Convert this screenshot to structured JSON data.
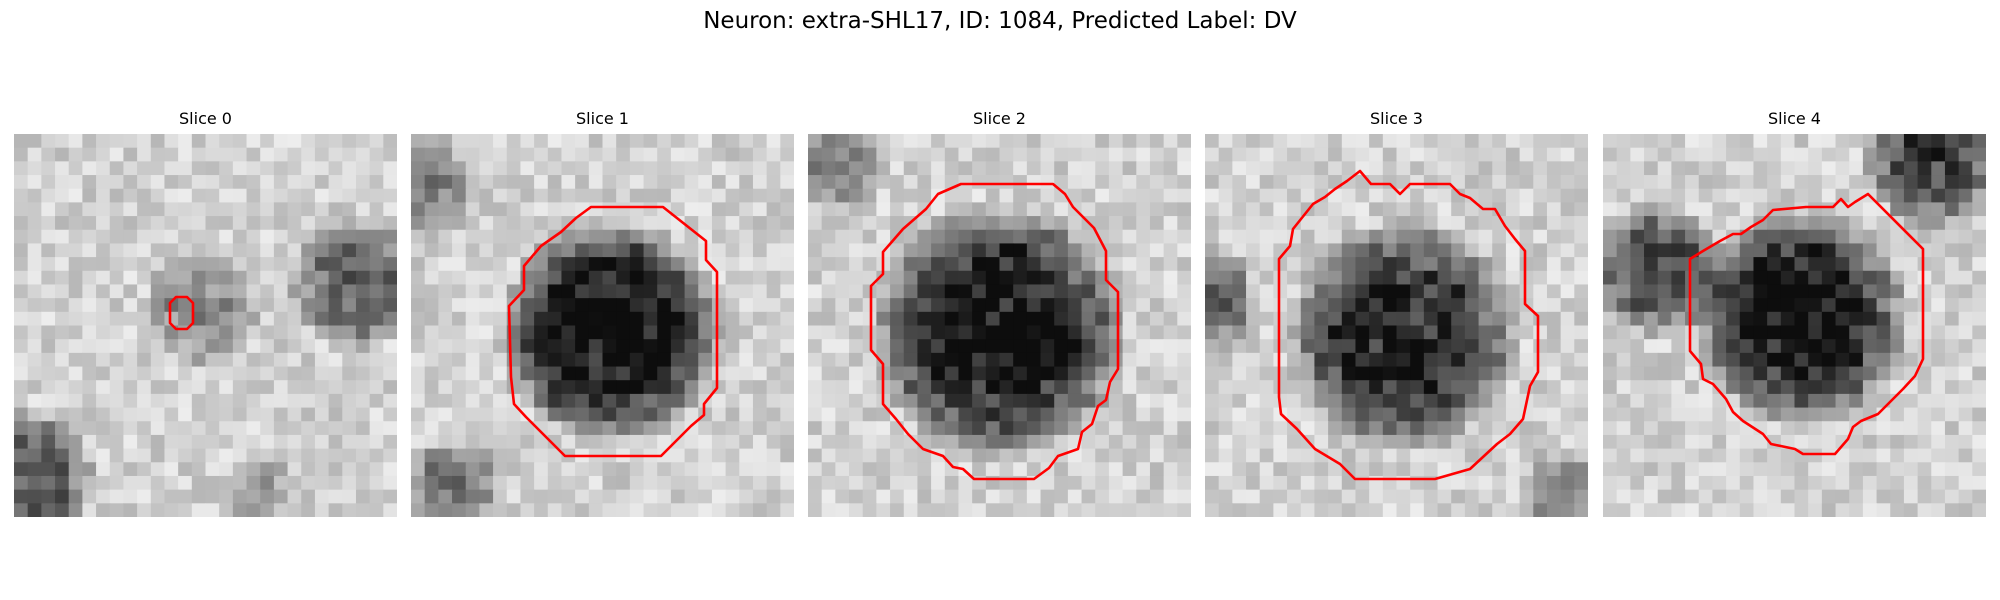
{
  "figure": {
    "title": "Neuron: extra-SHL17, ID: 1084, Predicted Label: DV"
  },
  "colors": {
    "contour": "#ff0000",
    "background": "#ffffff"
  },
  "panels": [
    {
      "title": "Slice 0"
    },
    {
      "title": "Slice 1"
    },
    {
      "title": "Slice 2"
    },
    {
      "title": "Slice 3"
    },
    {
      "title": "Slice 4"
    }
  ]
}
